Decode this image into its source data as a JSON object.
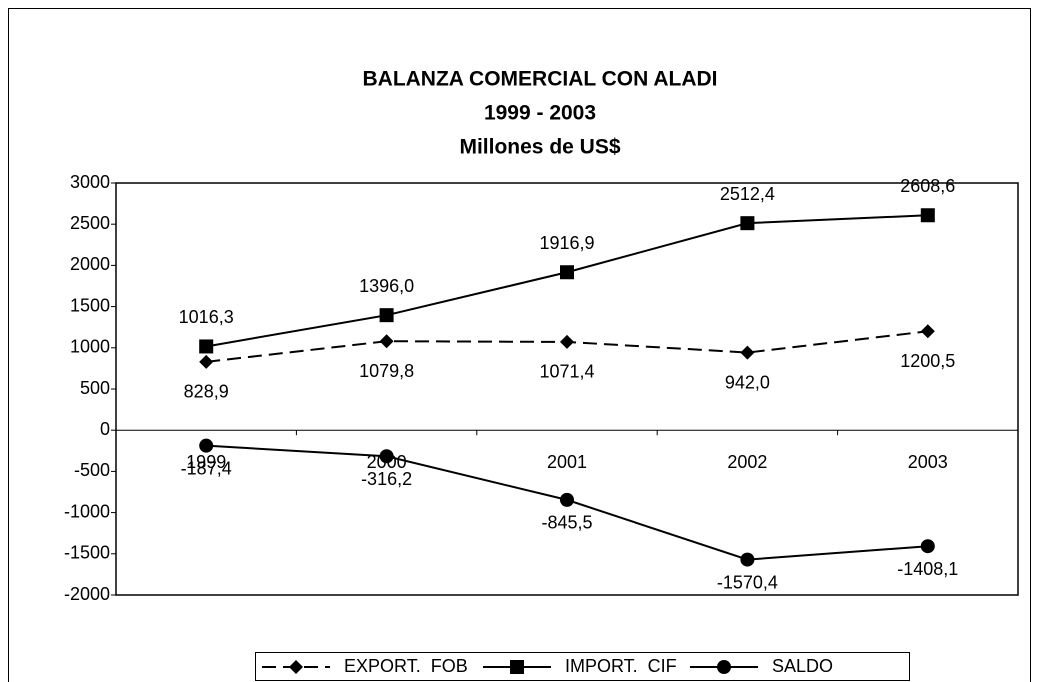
{
  "chart_data": {
    "type": "line",
    "title": "BALANZA COMERCIAL CON ALADI",
    "subtitle": [
      "1999 - 2003",
      "Millones de US$"
    ],
    "categories": [
      "1999",
      "2000",
      "2001",
      "2002",
      "2003"
    ],
    "series": [
      {
        "name": "EXPORT.  FOB",
        "color": "#000000",
        "marker": "diamond",
        "dash": true,
        "values": [
          828.9,
          1079.8,
          1071.4,
          942.0,
          1200.5
        ],
        "value_labels": [
          "828,9",
          "1079,8",
          "1071,4",
          "942,0",
          "1200,5"
        ]
      },
      {
        "name": "IMPORT.  CIF",
        "color": "#000000",
        "marker": "square",
        "dash": false,
        "values": [
          1016.3,
          1396.0,
          1916.9,
          2512.4,
          2608.6
        ],
        "value_labels": [
          "1016,3",
          "1396,0",
          "1916,9",
          "2512,4",
          "2608,6"
        ]
      },
      {
        "name": "SALDO",
        "color": "#000000",
        "marker": "circle",
        "dash": false,
        "values": [
          -187.4,
          -316.2,
          -845.5,
          -1570.4,
          -1408.1
        ],
        "value_labels": [
          "-187,4",
          "-316,2",
          "-845,5",
          "-1570,4",
          "-1408,1"
        ]
      }
    ],
    "ylim": [
      -2000,
      3000
    ],
    "yticks": [
      -2000,
      -1500,
      -1000,
      -500,
      0,
      500,
      1000,
      1500,
      2000,
      2500,
      3000
    ],
    "legend": "bottom"
  }
}
